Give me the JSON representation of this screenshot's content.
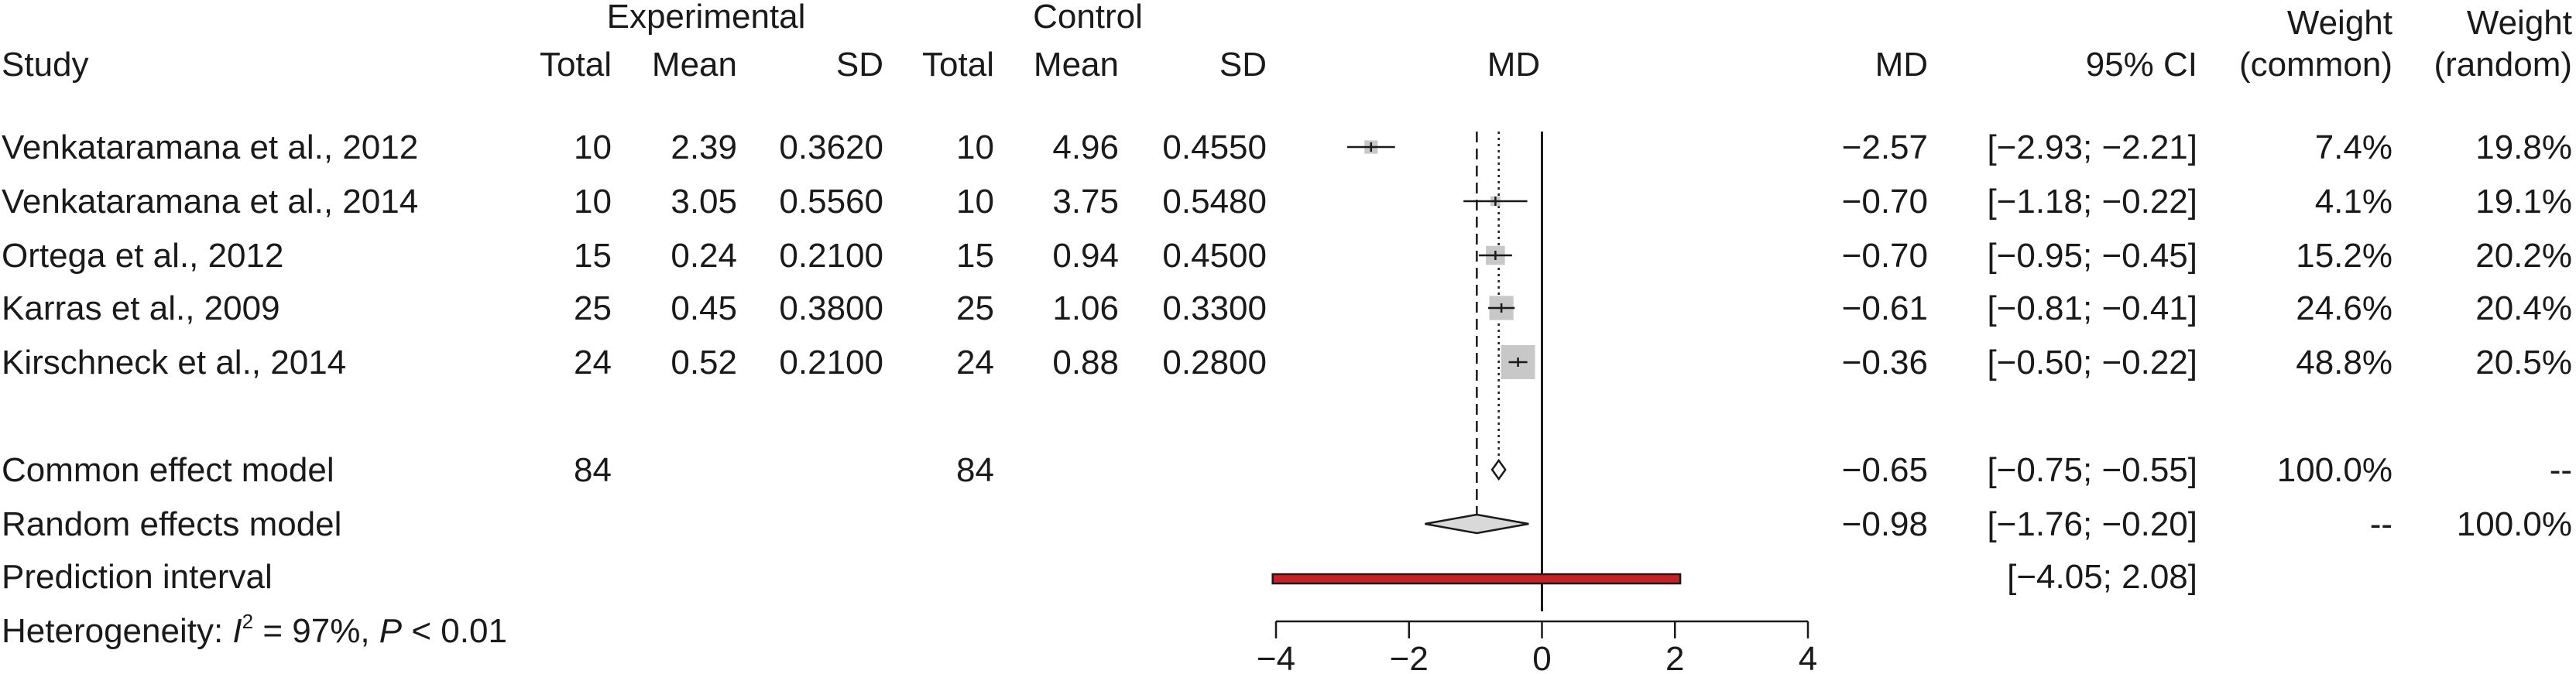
{
  "headers": {
    "group_experimental": "Experimental",
    "group_control": "Control",
    "study": "Study",
    "exp_total": "Total",
    "exp_mean": "Mean",
    "exp_sd": "SD",
    "ctl_total": "Total",
    "ctl_mean": "Mean",
    "ctl_sd": "SD",
    "plot_md": "MD",
    "md": "MD",
    "ci": "95% CI",
    "weight": "Weight",
    "weight_common": "(common)",
    "weight_random": "(random)"
  },
  "chart_data": {
    "type": "forest",
    "studies": [
      {
        "study": "Venkataramana et al., 2012",
        "exp_total": "10",
        "exp_mean": "2.39",
        "exp_sd": "0.3620",
        "ctl_total": "10",
        "ctl_mean": "4.96",
        "ctl_sd": "0.4550",
        "md_text": "−2.57",
        "ci_text": "[−2.93; −2.21]",
        "w_common": "7.4%",
        "w_random": "19.8%",
        "md": -2.57,
        "lo": -2.93,
        "hi": -2.21,
        "weight": 7.4
      },
      {
        "study": "Venkataramana et al., 2014",
        "exp_total": "10",
        "exp_mean": "3.05",
        "exp_sd": "0.5560",
        "ctl_total": "10",
        "ctl_mean": "3.75",
        "ctl_sd": "0.5480",
        "md_text": "−0.70",
        "ci_text": "[−1.18; −0.22]",
        "w_common": "4.1%",
        "w_random": "19.1%",
        "md": -0.7,
        "lo": -1.18,
        "hi": -0.22,
        "weight": 4.1
      },
      {
        "study": "Ortega et al., 2012",
        "exp_total": "15",
        "exp_mean": "0.24",
        "exp_sd": "0.2100",
        "ctl_total": "15",
        "ctl_mean": "0.94",
        "ctl_sd": "0.4500",
        "md_text": "−0.70",
        "ci_text": "[−0.95; −0.45]",
        "w_common": "15.2%",
        "w_random": "20.2%",
        "md": -0.7,
        "lo": -0.95,
        "hi": -0.45,
        "weight": 15.2
      },
      {
        "study": "Karras et al., 2009",
        "exp_total": "25",
        "exp_mean": "0.45",
        "exp_sd": "0.3800",
        "ctl_total": "25",
        "ctl_mean": "1.06",
        "ctl_sd": "0.3300",
        "md_text": "−0.61",
        "ci_text": "[−0.81; −0.41]",
        "w_common": "24.6%",
        "w_random": "20.4%",
        "md": -0.61,
        "lo": -0.81,
        "hi": -0.41,
        "weight": 24.6
      },
      {
        "study": "Kirschneck et al., 2014",
        "exp_total": "24",
        "exp_mean": "0.52",
        "exp_sd": "0.2100",
        "ctl_total": "24",
        "ctl_mean": "0.88",
        "ctl_sd": "0.2800",
        "md_text": "−0.36",
        "ci_text": "[−0.50; −0.22]",
        "w_common": "48.8%",
        "w_random": "20.5%",
        "md": -0.36,
        "lo": -0.5,
        "hi": -0.22,
        "weight": 48.8
      }
    ],
    "common": {
      "label": "Common effect model",
      "exp_total": "84",
      "ctl_total": "84",
      "md_text": "−0.65",
      "ci_text": "[−0.75; −0.55]",
      "w_common": "100.0%",
      "w_random": "--",
      "md": -0.65,
      "lo": -0.75,
      "hi": -0.55
    },
    "random": {
      "label": "Random effects model",
      "md_text": "−0.98",
      "ci_text": "[−1.76; −0.20]",
      "w_common": "--",
      "w_random": "100.0%",
      "md": -0.98,
      "lo": -1.76,
      "hi": -0.2
    },
    "prediction": {
      "label": "Prediction interval",
      "ci_text": "[−4.05; 2.08]",
      "lo": -4.05,
      "hi": 2.08
    },
    "heterogeneity": {
      "prefix": "Heterogeneity: ",
      "i_letter": "I",
      "sup": "2",
      "i2_value": " = 97%, ",
      "p_letter": "P",
      "p_value": " < 0.01"
    },
    "xaxis": {
      "range": [
        -4,
        4
      ],
      "ticks": [
        -4,
        -2,
        0,
        2,
        4
      ],
      "tick_labels": [
        "−4",
        "−2",
        "0",
        "2",
        "4"
      ]
    },
    "colors": {
      "prediction_fill": "#cc1f25",
      "square": "#c8c8c8",
      "text": "#1a1a1a"
    }
  }
}
